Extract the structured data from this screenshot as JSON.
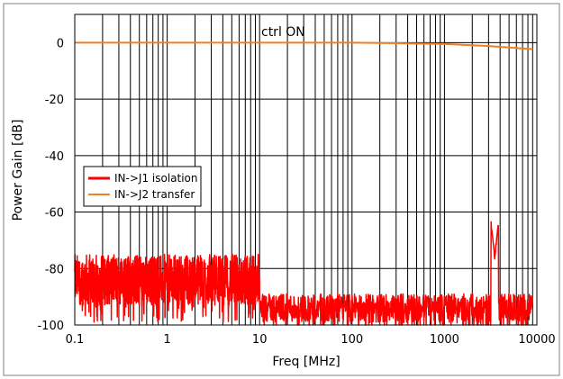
{
  "chart_data": {
    "type": "line",
    "xlabel": "Freq [MHz]",
    "ylabel": "Power Gain [dB]",
    "annotation": "ctrl ON",
    "x_scale": "log",
    "xlim": [
      0.1,
      10000
    ],
    "ylim": [
      -100,
      10
    ],
    "x_ticks": [
      "0.1",
      "1",
      "10",
      "100",
      "1000",
      "10000"
    ],
    "y_ticks": [
      "0",
      "-20",
      "-40",
      "-60",
      "-80",
      "-100"
    ],
    "grid": true,
    "legend_position": "middle-left",
    "series": [
      {
        "name": "IN->J1 isolation",
        "color": "#ff0000",
        "segments": [
          {
            "x_from": 0.1,
            "x_to": 10,
            "mean": -84,
            "spread": 9
          },
          {
            "x_from": 10,
            "x_to": 9000,
            "mean": -94,
            "spread": 5
          }
        ],
        "spike": {
          "x": 3500,
          "y": -77
        }
      },
      {
        "name": "IN->J2 transfer",
        "color": "#f07f20",
        "x": [
          0.1,
          1,
          10,
          100,
          300,
          1000,
          2000,
          3000,
          5000,
          9000
        ],
        "y": [
          0,
          0,
          0,
          0,
          -0.2,
          -0.5,
          -0.9,
          -1.2,
          -1.7,
          -2.3
        ]
      }
    ]
  }
}
